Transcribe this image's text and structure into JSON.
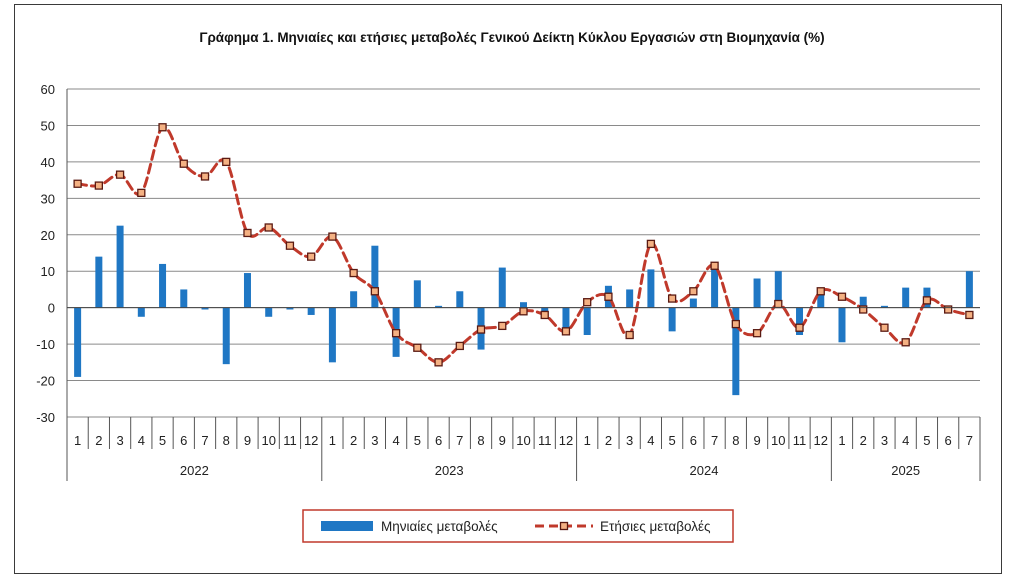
{
  "chart_data": {
    "type": "bar",
    "title": "Γράφημα 1. Μηνιαίες και ετήσιες μεταβολές  Γενικού Δείκτη Κύκλου Εργασιών στη Βιομηχανία (%)",
    "ylim": [
      -30,
      60
    ],
    "yticks": [
      "60",
      "50",
      "40",
      "30",
      "20",
      "10",
      "0",
      "-10",
      "-20",
      "-30"
    ],
    "ytick_values": [
      60,
      50,
      40,
      30,
      20,
      10,
      0,
      -10,
      -20,
      -30
    ],
    "months": [
      "1",
      "2",
      "3",
      "4",
      "5",
      "6",
      "7",
      "8",
      "9",
      "10",
      "11",
      "12",
      "1",
      "2",
      "3",
      "4",
      "5",
      "6",
      "7",
      "8",
      "9",
      "10",
      "11",
      "12",
      "1",
      "2",
      "3",
      "4",
      "5",
      "6",
      "7",
      "8",
      "9",
      "10",
      "11",
      "12",
      "1",
      "2",
      "3",
      "4",
      "5",
      "6",
      "7"
    ],
    "years": [
      {
        "label": "2022",
        "count": 12
      },
      {
        "label": "2023",
        "count": 12
      },
      {
        "label": "2024",
        "count": 12
      },
      {
        "label": "2025",
        "count": 7
      }
    ],
    "grid": true,
    "legend_position": "bottom",
    "series": [
      {
        "name": "Μηνιαίες μεταβολές",
        "type": "bar",
        "color": "#1f77c4",
        "values": [
          -19,
          14,
          22.5,
          -2.5,
          12,
          5,
          -0.5,
          -15.5,
          9.5,
          -2.5,
          -0.5,
          -2,
          -15,
          4.5,
          17,
          -13.5,
          7.5,
          0.5,
          4.5,
          -11.5,
          11,
          1.5,
          -2.5,
          -6.5,
          -7.5,
          6,
          5,
          10.5,
          -6.5,
          2.5,
          11.5,
          -24,
          8,
          10,
          -7.5,
          4,
          -9.5,
          3,
          0.5,
          5.5,
          5.5,
          -0.5,
          10
        ]
      },
      {
        "name": "Ετήσιες μεταβολές",
        "type": "line",
        "color": "#c0392b",
        "values": [
          34,
          33.5,
          36.5,
          31.5,
          49.5,
          39.5,
          36,
          40,
          20.5,
          22,
          17,
          14,
          19.5,
          9.5,
          4.5,
          -7,
          -11,
          -15,
          -10.5,
          -6,
          -5,
          -1,
          -2,
          -6.5,
          1.5,
          3,
          -7.5,
          17.5,
          2.5,
          4.5,
          11.5,
          -4.5,
          -7,
          1,
          -5.5,
          4.5,
          3,
          -0.5,
          -5.5,
          -9.5,
          2,
          -0.5,
          -2
        ]
      }
    ]
  }
}
